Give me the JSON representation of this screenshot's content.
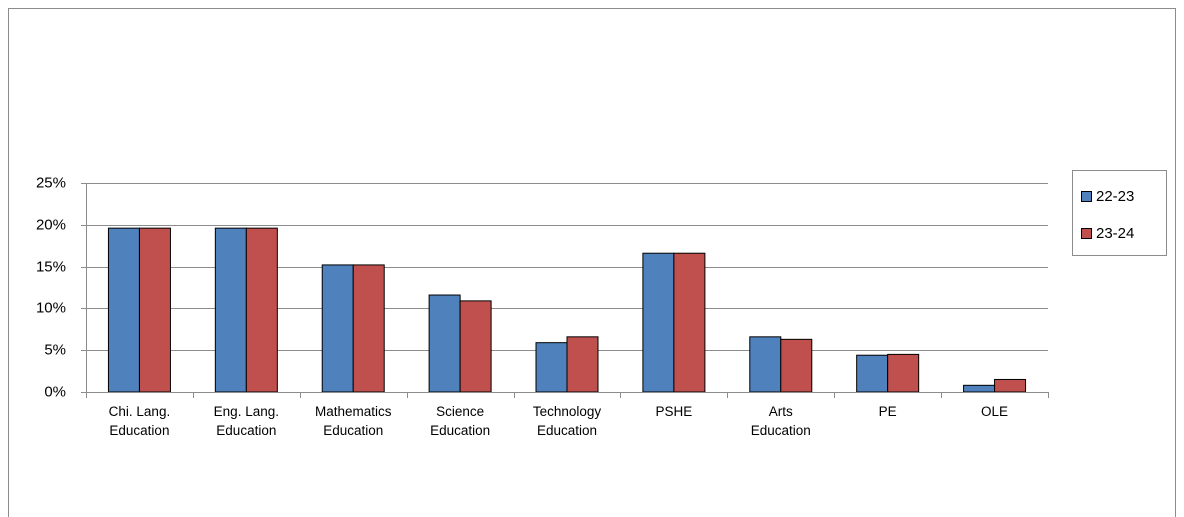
{
  "chart_data": {
    "type": "bar",
    "categories": [
      "Chi. Lang. Education",
      "Eng. Lang. Education",
      "Mathematics Education",
      "Science Education",
      "Technology Education",
      "PSHE",
      "Arts Education",
      "PE",
      "OLE"
    ],
    "series": [
      {
        "name": "22-23",
        "color": "#4f81bd",
        "values": [
          19.6,
          19.6,
          15.2,
          11.6,
          5.9,
          16.6,
          6.6,
          4.4,
          0.8
        ]
      },
      {
        "name": "23-24",
        "color": "#c0504d",
        "values": [
          19.6,
          19.6,
          15.2,
          10.9,
          6.6,
          16.6,
          6.3,
          4.5,
          1.5
        ]
      }
    ],
    "ylim": [
      0,
      25
    ],
    "yticks": [
      {
        "value": 0,
        "label": "0%"
      },
      {
        "value": 5,
        "label": "5%"
      },
      {
        "value": 10,
        "label": "10%"
      },
      {
        "value": 15,
        "label": "15%"
      },
      {
        "value": 20,
        "label": "20%"
      },
      {
        "value": 25,
        "label": "25%"
      }
    ],
    "grid": true,
    "legend": "right"
  }
}
